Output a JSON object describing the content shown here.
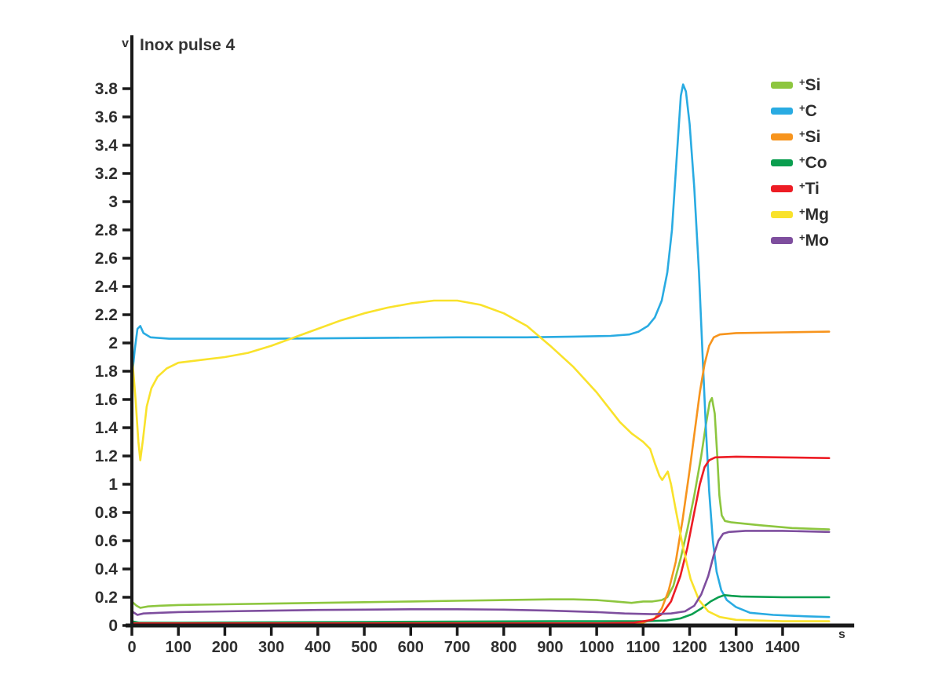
{
  "chart_data": {
    "type": "line",
    "title": "Inox pulse 4",
    "xlabel": "s",
    "ylabel": "v",
    "xlim": [
      0,
      1500
    ],
    "ylim": [
      0,
      4.15
    ],
    "grid": false,
    "legend_position": "upper-right",
    "x_ticks": [
      0,
      100,
      200,
      300,
      400,
      500,
      600,
      700,
      800,
      900,
      1000,
      1100,
      1200,
      1300,
      1400
    ],
    "y_ticks": [
      {
        "value": 0,
        "label": "0"
      },
      {
        "value": 0.2,
        "label": "0.2"
      },
      {
        "value": 0.4,
        "label": "0.4"
      },
      {
        "value": 0.6,
        "label": "0.6"
      },
      {
        "value": 0.8,
        "label": "0.8"
      },
      {
        "value": 1,
        "label": "1"
      },
      {
        "value": 1.2,
        "label": "1.2"
      },
      {
        "value": 1.4,
        "label": "1.4"
      },
      {
        "value": 1.6,
        "label": "1.6"
      },
      {
        "value": 1.8,
        "label": "1.8"
      },
      {
        "value": 2,
        "label": "2"
      },
      {
        "value": 2.2,
        "label": "2.2"
      },
      {
        "value": 2.4,
        "label": "2.4"
      },
      {
        "value": 2.6,
        "label": "2.6"
      },
      {
        "value": 2.8,
        "label": "2.8"
      },
      {
        "value": 3,
        "label": "3"
      },
      {
        "value": 3.2,
        "label": "3.2"
      },
      {
        "value": 3.4,
        "label": "3.4"
      },
      {
        "value": 3.6,
        "label": "3.6"
      },
      {
        "value": 3.8,
        "label": "3.8"
      }
    ],
    "axis_color": "#1a1a1a",
    "series": [
      {
        "plus": "+",
        "name": "Si",
        "legend": "+Si",
        "color": "#8DC63F",
        "points": [
          [
            0,
            0.17
          ],
          [
            10,
            0.14
          ],
          [
            18,
            0.125
          ],
          [
            35,
            0.135
          ],
          [
            60,
            0.14
          ],
          [
            100,
            0.145
          ],
          [
            200,
            0.15
          ],
          [
            300,
            0.155
          ],
          [
            400,
            0.16
          ],
          [
            500,
            0.165
          ],
          [
            600,
            0.17
          ],
          [
            700,
            0.175
          ],
          [
            800,
            0.18
          ],
          [
            900,
            0.185
          ],
          [
            950,
            0.185
          ],
          [
            1000,
            0.18
          ],
          [
            1040,
            0.17
          ],
          [
            1075,
            0.16
          ],
          [
            1100,
            0.17
          ],
          [
            1120,
            0.17
          ],
          [
            1140,
            0.18
          ],
          [
            1152,
            0.2
          ],
          [
            1165,
            0.28
          ],
          [
            1181,
            0.48
          ],
          [
            1195,
            0.68
          ],
          [
            1210,
            0.92
          ],
          [
            1225,
            1.2
          ],
          [
            1235,
            1.42
          ],
          [
            1243,
            1.58
          ],
          [
            1248,
            1.61
          ],
          [
            1254,
            1.5
          ],
          [
            1259,
            1.22
          ],
          [
            1264,
            0.92
          ],
          [
            1269,
            0.78
          ],
          [
            1276,
            0.74
          ],
          [
            1290,
            0.73
          ],
          [
            1350,
            0.71
          ],
          [
            1420,
            0.69
          ],
          [
            1500,
            0.68
          ]
        ]
      },
      {
        "plus": "+",
        "name": "C",
        "legend": "+C",
        "color": "#29ABE2",
        "points": [
          [
            0,
            1.75
          ],
          [
            6,
            1.95
          ],
          [
            12,
            2.1
          ],
          [
            18,
            2.12
          ],
          [
            25,
            2.07
          ],
          [
            40,
            2.04
          ],
          [
            80,
            2.03
          ],
          [
            150,
            2.03
          ],
          [
            300,
            2.03
          ],
          [
            500,
            2.035
          ],
          [
            700,
            2.04
          ],
          [
            850,
            2.04
          ],
          [
            950,
            2.045
          ],
          [
            1030,
            2.05
          ],
          [
            1070,
            2.06
          ],
          [
            1090,
            2.08
          ],
          [
            1110,
            2.12
          ],
          [
            1125,
            2.18
          ],
          [
            1140,
            2.3
          ],
          [
            1152,
            2.5
          ],
          [
            1162,
            2.8
          ],
          [
            1172,
            3.3
          ],
          [
            1181,
            3.75
          ],
          [
            1186,
            3.83
          ],
          [
            1192,
            3.78
          ],
          [
            1200,
            3.55
          ],
          [
            1210,
            3.1
          ],
          [
            1220,
            2.5
          ],
          [
            1228,
            1.9
          ],
          [
            1235,
            1.4
          ],
          [
            1242,
            0.95
          ],
          [
            1250,
            0.6
          ],
          [
            1258,
            0.38
          ],
          [
            1268,
            0.25
          ],
          [
            1280,
            0.18
          ],
          [
            1300,
            0.13
          ],
          [
            1330,
            0.09
          ],
          [
            1380,
            0.075
          ],
          [
            1450,
            0.065
          ],
          [
            1500,
            0.06
          ]
        ]
      },
      {
        "plus": "+",
        "name": "Si",
        "legend": "+Si",
        "color": "#F7941D",
        "points": [
          [
            0,
            0.01
          ],
          [
            500,
            0.01
          ],
          [
            900,
            0.01
          ],
          [
            1050,
            0.01
          ],
          [
            1100,
            0.02
          ],
          [
            1125,
            0.05
          ],
          [
            1140,
            0.12
          ],
          [
            1155,
            0.25
          ],
          [
            1170,
            0.45
          ],
          [
            1185,
            0.75
          ],
          [
            1200,
            1.1
          ],
          [
            1212,
            1.4
          ],
          [
            1222,
            1.65
          ],
          [
            1232,
            1.85
          ],
          [
            1242,
            1.98
          ],
          [
            1252,
            2.04
          ],
          [
            1265,
            2.06
          ],
          [
            1300,
            2.07
          ],
          [
            1400,
            2.075
          ],
          [
            1500,
            2.08
          ]
        ]
      },
      {
        "plus": "+",
        "name": "Co",
        "legend": "+Co",
        "color": "#0A9E4F",
        "points": [
          [
            0,
            0.03
          ],
          [
            15,
            0.02
          ],
          [
            100,
            0.02
          ],
          [
            500,
            0.025
          ],
          [
            900,
            0.03
          ],
          [
            1100,
            0.03
          ],
          [
            1150,
            0.035
          ],
          [
            1180,
            0.05
          ],
          [
            1205,
            0.08
          ],
          [
            1225,
            0.12
          ],
          [
            1245,
            0.17
          ],
          [
            1262,
            0.2
          ],
          [
            1275,
            0.215
          ],
          [
            1290,
            0.21
          ],
          [
            1310,
            0.205
          ],
          [
            1400,
            0.2
          ],
          [
            1500,
            0.2
          ]
        ]
      },
      {
        "plus": "+",
        "name": "Ti",
        "legend": "+Ti",
        "color": "#ED1C24",
        "points": [
          [
            0,
            0.015
          ],
          [
            500,
            0.015
          ],
          [
            1000,
            0.015
          ],
          [
            1080,
            0.02
          ],
          [
            1120,
            0.04
          ],
          [
            1140,
            0.08
          ],
          [
            1160,
            0.17
          ],
          [
            1180,
            0.35
          ],
          [
            1195,
            0.55
          ],
          [
            1210,
            0.8
          ],
          [
            1222,
            1.0
          ],
          [
            1232,
            1.12
          ],
          [
            1242,
            1.17
          ],
          [
            1255,
            1.19
          ],
          [
            1300,
            1.195
          ],
          [
            1400,
            1.19
          ],
          [
            1500,
            1.185
          ]
        ]
      },
      {
        "plus": "+",
        "name": "Mg",
        "legend": "+Mg",
        "color": "#F9E22B",
        "points": [
          [
            0,
            1.92
          ],
          [
            8,
            1.6
          ],
          [
            14,
            1.3
          ],
          [
            18,
            1.17
          ],
          [
            24,
            1.32
          ],
          [
            32,
            1.55
          ],
          [
            42,
            1.68
          ],
          [
            55,
            1.76
          ],
          [
            75,
            1.82
          ],
          [
            100,
            1.86
          ],
          [
            150,
            1.88
          ],
          [
            200,
            1.9
          ],
          [
            250,
            1.93
          ],
          [
            300,
            1.98
          ],
          [
            350,
            2.04
          ],
          [
            400,
            2.1
          ],
          [
            450,
            2.16
          ],
          [
            500,
            2.21
          ],
          [
            550,
            2.25
          ],
          [
            600,
            2.28
          ],
          [
            650,
            2.3
          ],
          [
            700,
            2.3
          ],
          [
            750,
            2.27
          ],
          [
            800,
            2.21
          ],
          [
            850,
            2.12
          ],
          [
            875,
            2.05
          ],
          [
            900,
            1.98
          ],
          [
            950,
            1.83
          ],
          [
            1000,
            1.65
          ],
          [
            1050,
            1.44
          ],
          [
            1075,
            1.36
          ],
          [
            1100,
            1.3
          ],
          [
            1115,
            1.25
          ],
          [
            1125,
            1.15
          ],
          [
            1135,
            1.06
          ],
          [
            1141,
            1.03
          ],
          [
            1147,
            1.06
          ],
          [
            1153,
            1.09
          ],
          [
            1160,
            1.0
          ],
          [
            1170,
            0.82
          ],
          [
            1186,
            0.55
          ],
          [
            1202,
            0.33
          ],
          [
            1220,
            0.18
          ],
          [
            1240,
            0.1
          ],
          [
            1265,
            0.06
          ],
          [
            1300,
            0.04
          ],
          [
            1400,
            0.03
          ],
          [
            1500,
            0.03
          ]
        ]
      },
      {
        "plus": "+",
        "name": "Mo",
        "legend": "+Mo",
        "color": "#7E4E9E",
        "points": [
          [
            0,
            0.1
          ],
          [
            12,
            0.075
          ],
          [
            25,
            0.085
          ],
          [
            60,
            0.09
          ],
          [
            100,
            0.095
          ],
          [
            200,
            0.1
          ],
          [
            300,
            0.105
          ],
          [
            400,
            0.11
          ],
          [
            500,
            0.112
          ],
          [
            600,
            0.115
          ],
          [
            700,
            0.115
          ],
          [
            800,
            0.112
          ],
          [
            900,
            0.105
          ],
          [
            1000,
            0.095
          ],
          [
            1060,
            0.085
          ],
          [
            1120,
            0.08
          ],
          [
            1160,
            0.085
          ],
          [
            1190,
            0.1
          ],
          [
            1210,
            0.14
          ],
          [
            1225,
            0.22
          ],
          [
            1240,
            0.35
          ],
          [
            1252,
            0.5
          ],
          [
            1262,
            0.6
          ],
          [
            1272,
            0.65
          ],
          [
            1285,
            0.662
          ],
          [
            1320,
            0.67
          ],
          [
            1400,
            0.67
          ],
          [
            1500,
            0.662
          ]
        ]
      }
    ]
  }
}
